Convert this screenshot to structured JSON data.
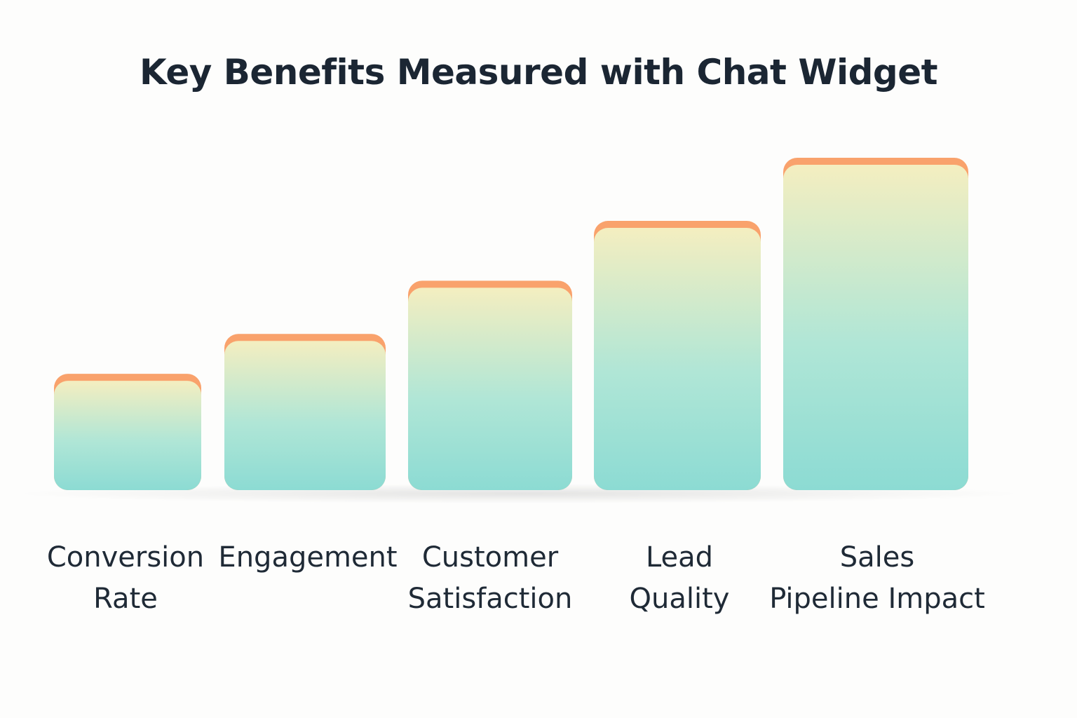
{
  "chart_data": {
    "type": "bar",
    "title": "Key Benefits Measured with Chat Widget",
    "categories": [
      [
        "Conversion",
        "Rate"
      ],
      [
        "Engagement"
      ],
      [
        "Customer",
        "Satisfaction"
      ],
      [
        "Lead",
        "Quality"
      ],
      [
        "Sales",
        "Pipeline Impact"
      ]
    ],
    "values": [
      35,
      47,
      63,
      81,
      100
    ],
    "ylim": [
      0,
      100
    ],
    "xlabel": "",
    "ylabel": "",
    "grid": false,
    "legend": "none",
    "colors": {
      "bar_top": "#f4eec0",
      "bar_mid": "#b0e6d6",
      "bar_bottom": "#8cdbd3",
      "cap": "#f9a26c",
      "title": "#1b2633",
      "label": "#1f2a36"
    }
  }
}
